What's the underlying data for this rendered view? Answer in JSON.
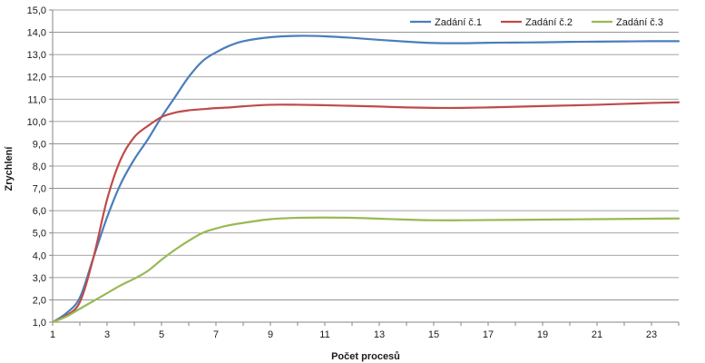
{
  "chart_data": {
    "type": "line",
    "xlabel": "Počet procesů",
    "ylabel": "Zrychlení",
    "xlim": [
      1,
      24
    ],
    "ylim": [
      1,
      15
    ],
    "x_ticks": [
      1,
      3,
      5,
      7,
      9,
      11,
      13,
      15,
      17,
      19,
      21,
      23
    ],
    "y_ticks": [
      "1,0",
      "2,0",
      "3,0",
      "4,0",
      "5,0",
      "6,0",
      "7,0",
      "8,0",
      "9,0",
      "10,0",
      "11,0",
      "12,0",
      "13,0",
      "14,0",
      "15,0"
    ],
    "grid": "horizontal",
    "legend_position": "top-right",
    "x": [
      1,
      1.5,
      2,
      2.5,
      3,
      3.5,
      4,
      4.5,
      5,
      5.5,
      6,
      6.5,
      7,
      7.5,
      8,
      9,
      10,
      11,
      12,
      13,
      14,
      15,
      16,
      17,
      18,
      19,
      20,
      21,
      22,
      23,
      24
    ],
    "series": [
      {
        "name": "Zadání č.1",
        "color": "#4a7ebb",
        "values": [
          1.0,
          1.4,
          2.1,
          3.9,
          5.7,
          7.2,
          8.3,
          9.2,
          10.2,
          11.1,
          12.0,
          12.7,
          13.1,
          13.4,
          13.6,
          13.78,
          13.84,
          13.82,
          13.75,
          13.66,
          13.58,
          13.52,
          13.51,
          13.53,
          13.54,
          13.55,
          13.57,
          13.58,
          13.59,
          13.6,
          13.6
        ]
      },
      {
        "name": "Zadání č.2",
        "color": "#be4b48",
        "values": [
          1.0,
          1.3,
          1.9,
          3.9,
          6.5,
          8.3,
          9.3,
          9.8,
          10.2,
          10.4,
          10.5,
          10.55,
          10.6,
          10.63,
          10.68,
          10.75,
          10.75,
          10.73,
          10.7,
          10.67,
          10.63,
          10.61,
          10.61,
          10.63,
          10.66,
          10.69,
          10.72,
          10.75,
          10.79,
          10.83,
          10.86
        ]
      },
      {
        "name": "Zadání č.3",
        "color": "#98b954",
        "values": [
          1.0,
          1.25,
          1.6,
          1.95,
          2.3,
          2.65,
          2.95,
          3.3,
          3.8,
          4.25,
          4.65,
          5.0,
          5.2,
          5.35,
          5.45,
          5.62,
          5.68,
          5.69,
          5.68,
          5.64,
          5.6,
          5.57,
          5.57,
          5.58,
          5.59,
          5.6,
          5.61,
          5.62,
          5.63,
          5.64,
          5.65
        ]
      }
    ]
  }
}
